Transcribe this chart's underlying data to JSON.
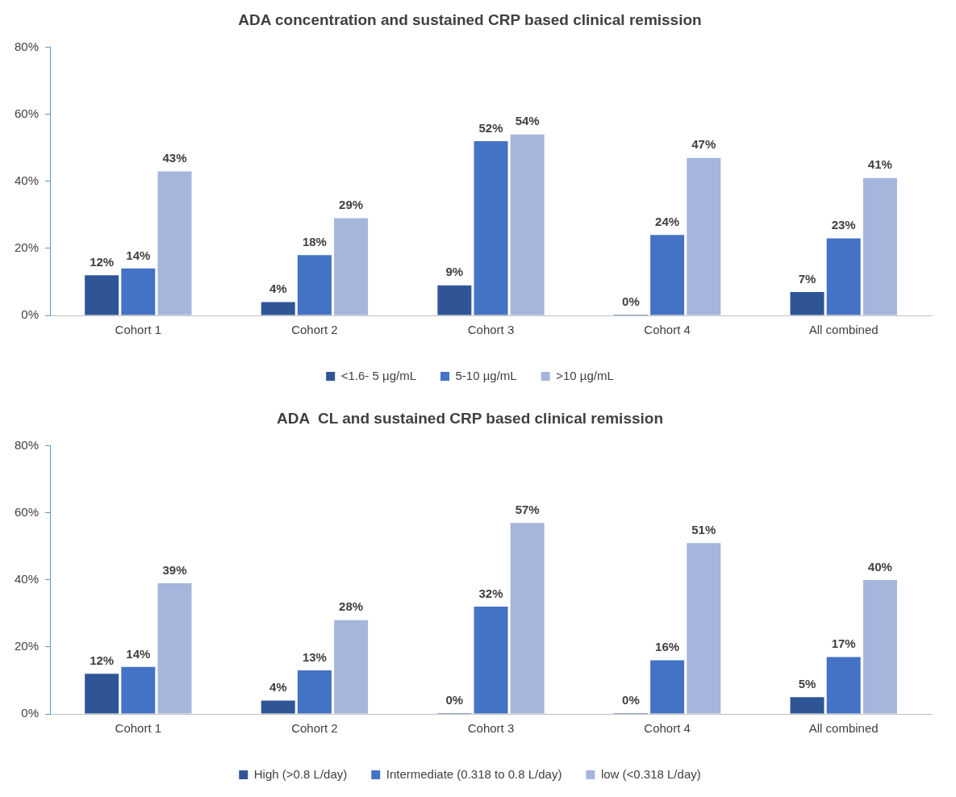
{
  "chart_data": [
    {
      "type": "bar",
      "title": "ADA concentration and sustained CRP based clinical remission",
      "categories": [
        "Cohort 1",
        "Cohort 2",
        "Cohort 3",
        "Cohort 4",
        "All combined"
      ],
      "series": [
        {
          "name": "<1.6- 5 µg/mL",
          "color": "#2f5597",
          "values": [
            12,
            4,
            9,
            0,
            7
          ],
          "value_labels": [
            "12%",
            "4%",
            "9%",
            "0%",
            "7%"
          ]
        },
        {
          "name": "5-10 µg/mL",
          "color": "#4472c4",
          "values": [
            14,
            18,
            52,
            24,
            23
          ],
          "value_labels": [
            "14%",
            "18%",
            "52%",
            "24%",
            "23%"
          ]
        },
        {
          "name": ">10 µg/mL",
          "color": "#a6b5dc",
          "values": [
            43,
            29,
            54,
            47,
            41
          ],
          "value_labels": [
            "43%",
            "29%",
            "54%",
            "47%",
            "41%"
          ]
        }
      ],
      "ylim": [
        0,
        80
      ],
      "yticks": [
        {
          "value": 0,
          "label": "0%"
        },
        {
          "value": 20,
          "label": "20%"
        },
        {
          "value": 40,
          "label": "40%"
        },
        {
          "value": 60,
          "label": "60%"
        },
        {
          "value": 80,
          "label": "80%"
        }
      ],
      "grid": false,
      "legend": "bottom"
    },
    {
      "type": "bar",
      "title": "ADA  CL and sustained CRP based clinical remission",
      "categories": [
        "Cohort 1",
        "Cohort 2",
        "Cohort 3",
        "Cohort 4",
        "All combined"
      ],
      "series": [
        {
          "name": "High (>0.8 L/day)",
          "color": "#2f5597",
          "values": [
            12,
            4,
            0,
            0,
            5
          ],
          "value_labels": [
            "12%",
            "4%",
            "0%",
            "0%",
            "5%"
          ]
        },
        {
          "name": "Intermediate (0.318 to 0.8 L/day)",
          "color": "#4472c4",
          "values": [
            14,
            13,
            32,
            16,
            17
          ],
          "value_labels": [
            "14%",
            "13%",
            "32%",
            "16%",
            "17%"
          ]
        },
        {
          "name": "low (<0.318 L/day)",
          "color": "#a6b5dc",
          "values": [
            39,
            28,
            57,
            51,
            40
          ],
          "value_labels": [
            "39%",
            "28%",
            "57%",
            "51%",
            "40%"
          ]
        }
      ],
      "ylim": [
        0,
        80
      ],
      "yticks": [
        {
          "value": 0,
          "label": "0%"
        },
        {
          "value": 20,
          "label": "20%"
        },
        {
          "value": 40,
          "label": "40%"
        },
        {
          "value": 60,
          "label": "60%"
        },
        {
          "value": 80,
          "label": "80%"
        }
      ],
      "grid": false,
      "legend": "bottom"
    }
  ]
}
